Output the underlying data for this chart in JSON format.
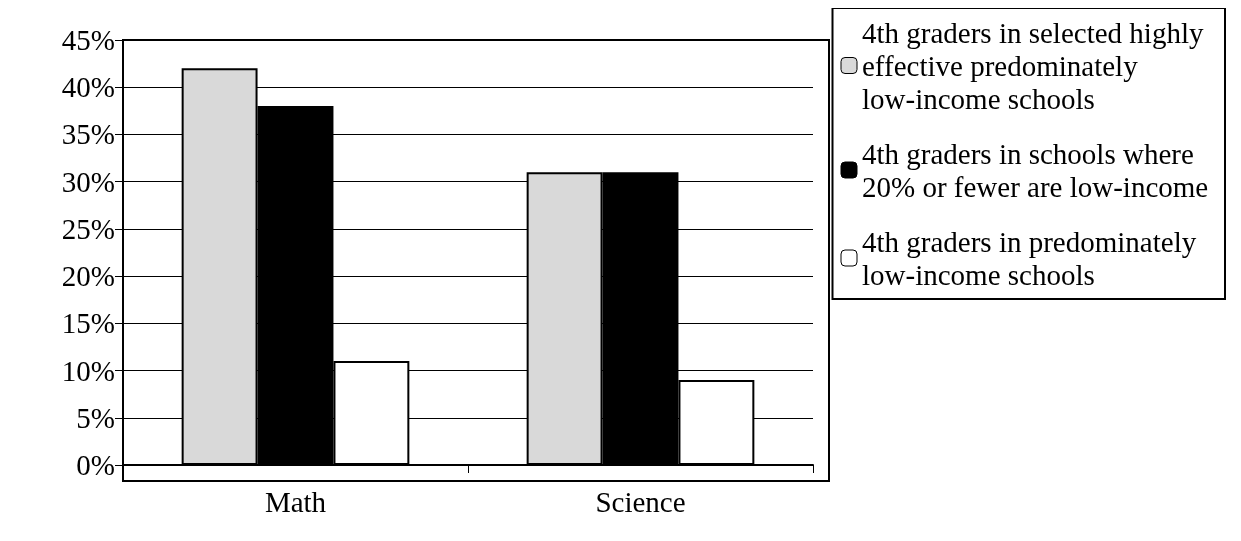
{
  "chart_data": {
    "type": "bar",
    "categories": [
      "Math",
      "Science"
    ],
    "series": [
      {
        "name": "4th graders in selected highly effective predominately low-income schools",
        "color": "#d9d9d9",
        "values": [
          42,
          31
        ]
      },
      {
        "name": "4th graders in schools where 20% or fewer are low-income",
        "color": "#000000",
        "values": [
          38,
          31
        ]
      },
      {
        "name": "4th graders in predominately low-income schools",
        "color": "#ffffff",
        "values": [
          11,
          9
        ]
      }
    ],
    "ylim": [
      0,
      45
    ],
    "yticks": [
      {
        "value": 0,
        "label": "0%"
      },
      {
        "value": 5,
        "label": "5%"
      },
      {
        "value": 10,
        "label": "10%"
      },
      {
        "value": 15,
        "label": "15%"
      },
      {
        "value": 20,
        "label": "20%"
      },
      {
        "value": 25,
        "label": "25%"
      },
      {
        "value": 30,
        "label": "30%"
      },
      {
        "value": 35,
        "label": "35%"
      },
      {
        "value": 40,
        "label": "40%"
      },
      {
        "value": 45,
        "label": "45%"
      }
    ],
    "grid": "y",
    "legend": "right"
  }
}
